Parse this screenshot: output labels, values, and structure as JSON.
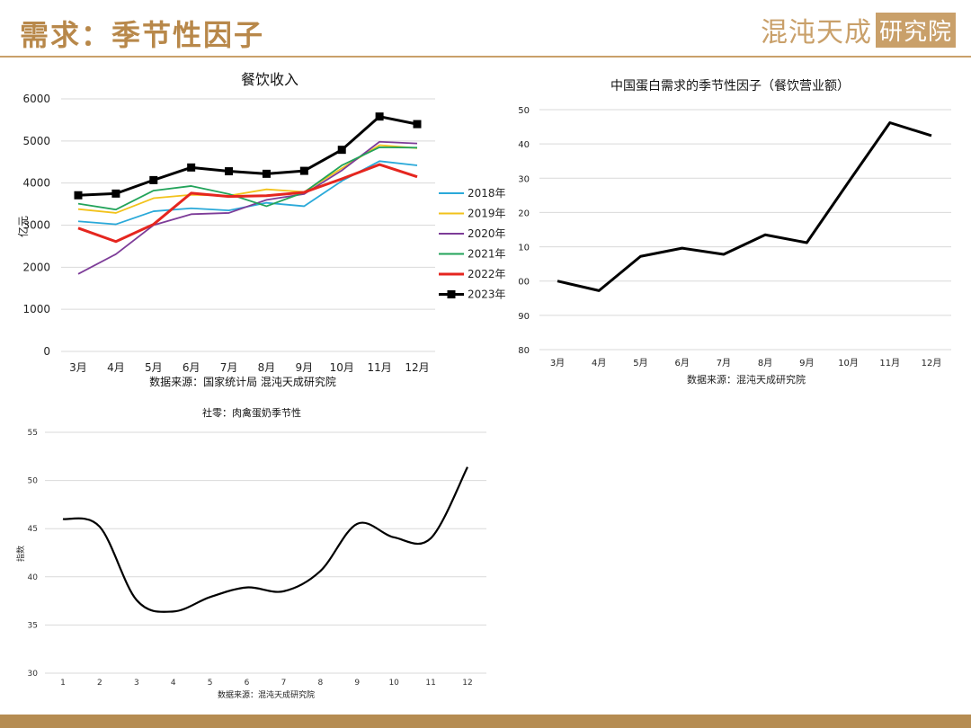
{
  "header": {
    "title": "需求：季节性因子",
    "logo_text": "混沌天成",
    "logo_box": "研究院"
  },
  "chart_data": [
    {
      "id": "chart1",
      "type": "line",
      "title": "餐饮收入",
      "ylabel": "亿元",
      "source": "数据来源：国家统计局 混沌天成研究院",
      "categories": [
        "3月",
        "4月",
        "5月",
        "6月",
        "7月",
        "8月",
        "9月",
        "10月",
        "11月",
        "12月"
      ],
      "ylim": [
        0,
        6000
      ],
      "yticks": [
        0,
        1000,
        2000,
        3000,
        4000,
        5000,
        6000
      ],
      "legend": "right",
      "grid": true,
      "series": [
        {
          "name": "2018年",
          "color": "#2aa9d9",
          "values": [
            3090,
            3020,
            3330,
            3400,
            3350,
            3530,
            3450,
            4050,
            4520,
            4420
          ]
        },
        {
          "name": "2019年",
          "color": "#f2c21a",
          "values": [
            3380,
            3290,
            3640,
            3720,
            3700,
            3850,
            3790,
            4350,
            4900,
            4830
          ]
        },
        {
          "name": "2020年",
          "color": "#7d3c98",
          "values": [
            1840,
            2310,
            3000,
            3260,
            3290,
            3600,
            3740,
            4300,
            4980,
            4940
          ]
        },
        {
          "name": "2021年",
          "color": "#22a35a",
          "values": [
            3510,
            3370,
            3820,
            3930,
            3740,
            3450,
            3780,
            4420,
            4850,
            4840
          ]
        },
        {
          "name": "2022年",
          "color": "#e5261f",
          "values": [
            2930,
            2610,
            3020,
            3760,
            3680,
            3700,
            3780,
            4100,
            4440,
            4150
          ]
        },
        {
          "name": "2023年",
          "color": "#000000",
          "marker": "square",
          "values": [
            3710,
            3750,
            4070,
            4370,
            4280,
            4220,
            4290,
            4790,
            5580,
            5400
          ]
        }
      ]
    },
    {
      "id": "chart2",
      "type": "line",
      "title": "中国蛋白需求的季节性因子（餐饮营业额）",
      "source": "数据来源：混沌天成研究院",
      "categories": [
        "3月",
        "4月",
        "5月",
        "6月",
        "7月",
        "8月",
        "9月",
        "10月",
        "11月",
        "12月"
      ],
      "ylim": [
        80,
        150
      ],
      "yticks_labels": [
        "80",
        "90",
        "00",
        "10",
        "20",
        "30",
        "40",
        "50"
      ],
      "grid": true,
      "series": [
        {
          "name": "",
          "color": "#000000",
          "values": [
            100,
            97.2,
            107.2,
            109.6,
            107.8,
            113.5,
            111.2,
            128.8,
            146.2,
            142.4
          ]
        }
      ]
    },
    {
      "id": "chart3",
      "type": "line",
      "title": "社零：肉禽蛋奶季节性",
      "ylabel": "指数",
      "source": "数据来源：混沌天成研究院",
      "x": [
        1,
        2,
        3,
        4,
        5,
        6,
        7,
        8,
        9,
        10,
        11,
        12
      ],
      "ylim": [
        30,
        55
      ],
      "yticks": [
        30,
        35,
        40,
        45,
        50,
        55
      ],
      "grid": true,
      "series": [
        {
          "name": "",
          "color": "#000000",
          "values": [
            46.0,
            45.2,
            37.6,
            36.4,
            37.9,
            38.9,
            38.5,
            40.6,
            45.5,
            44.1,
            44.0,
            51.4
          ]
        }
      ]
    }
  ]
}
